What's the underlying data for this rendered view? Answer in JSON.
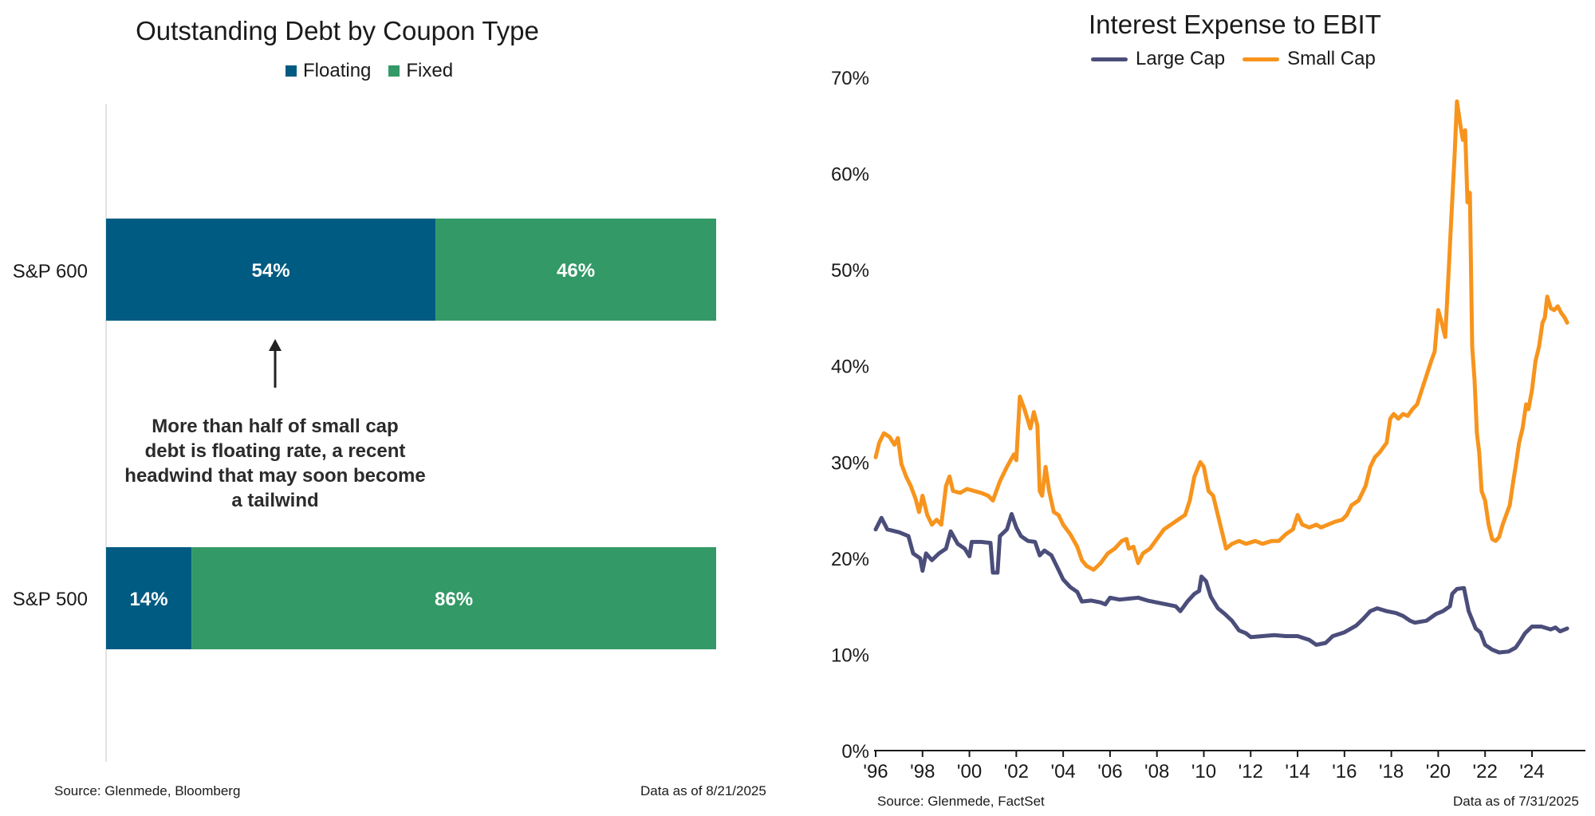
{
  "chart_data": [
    {
      "type": "bar",
      "stacked": true,
      "orientation": "horizontal",
      "title": "Outstanding Debt by Coupon Type",
      "categories": [
        "S&P 600",
        "S&P 500"
      ],
      "series": [
        {
          "name": "Floating",
          "values": [
            54,
            14
          ],
          "labels": [
            "54%",
            "14%"
          ],
          "color": "#005b82"
        },
        {
          "name": "Fixed",
          "values": [
            46,
            86
          ],
          "labels": [
            "46%",
            "86%"
          ],
          "color": "#339966"
        }
      ],
      "legend_placement": "top-center",
      "annotation": "More than half of small cap debt is floating rate, a recent headwind that may soon become a tailwind",
      "source": "Source: Glenmede, Bloomberg",
      "as_of": "Data as of 8/21/2025"
    },
    {
      "type": "line",
      "title": "Interest Expense to EBIT",
      "y_ticks": [
        "0%",
        "10%",
        "20%",
        "30%",
        "40%",
        "50%",
        "60%",
        "70%"
      ],
      "ylim": [
        0,
        70
      ],
      "x_ticks": [
        "'96",
        "'98",
        "'00",
        "'02",
        "'04",
        "'06",
        "'08",
        "'10",
        "'12",
        "'14",
        "'16",
        "'18",
        "'20",
        "'22",
        "'24"
      ],
      "xlim": [
        1996.0,
        2025.6
      ],
      "legend_placement": "top-center",
      "series": [
        {
          "name": "Large Cap",
          "color": "#4b4d7a",
          "points": [
            [
              1996.0,
              23.0
            ],
            [
              1996.25,
              24.2
            ],
            [
              1996.5,
              23.0
            ],
            [
              1997.0,
              22.7
            ],
            [
              1997.4,
              22.3
            ],
            [
              1997.6,
              20.5
            ],
            [
              1997.9,
              20.0
            ],
            [
              1998.0,
              18.7
            ],
            [
              1998.15,
              20.5
            ],
            [
              1998.4,
              19.8
            ],
            [
              1998.7,
              20.5
            ],
            [
              1999.0,
              21.0
            ],
            [
              1999.2,
              22.8
            ],
            [
              1999.5,
              21.5
            ],
            [
              1999.8,
              21.0
            ],
            [
              2000.0,
              20.2
            ],
            [
              2000.1,
              21.7
            ],
            [
              2000.5,
              21.7
            ],
            [
              2000.9,
              21.6
            ],
            [
              2001.0,
              18.5
            ],
            [
              2001.2,
              18.5
            ],
            [
              2001.3,
              22.3
            ],
            [
              2001.6,
              23.0
            ],
            [
              2001.8,
              24.6
            ],
            [
              2002.0,
              23.2
            ],
            [
              2002.2,
              22.3
            ],
            [
              2002.5,
              21.8
            ],
            [
              2002.8,
              21.7
            ],
            [
              2003.0,
              20.3
            ],
            [
              2003.2,
              20.8
            ],
            [
              2003.5,
              20.3
            ],
            [
              2003.8,
              18.8
            ],
            [
              2004.0,
              17.8
            ],
            [
              2004.3,
              17.0
            ],
            [
              2004.6,
              16.5
            ],
            [
              2004.8,
              15.5
            ],
            [
              2005.2,
              15.6
            ],
            [
              2005.6,
              15.4
            ],
            [
              2005.8,
              15.2
            ],
            [
              2006.0,
              15.9
            ],
            [
              2006.4,
              15.7
            ],
            [
              2006.8,
              15.8
            ],
            [
              2007.2,
              15.9
            ],
            [
              2007.6,
              15.6
            ],
            [
              2008.0,
              15.4
            ],
            [
              2008.4,
              15.2
            ],
            [
              2008.8,
              15.0
            ],
            [
              2009.0,
              14.5
            ],
            [
              2009.3,
              15.5
            ],
            [
              2009.6,
              16.3
            ],
            [
              2009.8,
              16.6
            ],
            [
              2009.9,
              18.1
            ],
            [
              2010.1,
              17.6
            ],
            [
              2010.3,
              16.0
            ],
            [
              2010.6,
              14.8
            ],
            [
              2010.9,
              14.2
            ],
            [
              2011.2,
              13.5
            ],
            [
              2011.5,
              12.5
            ],
            [
              2011.8,
              12.2
            ],
            [
              2012.0,
              11.8
            ],
            [
              2012.5,
              11.9
            ],
            [
              2013.0,
              12.0
            ],
            [
              2013.5,
              11.9
            ],
            [
              2014.0,
              11.9
            ],
            [
              2014.5,
              11.5
            ],
            [
              2014.8,
              11.0
            ],
            [
              2015.2,
              11.2
            ],
            [
              2015.5,
              11.9
            ],
            [
              2016.0,
              12.3
            ],
            [
              2016.5,
              13.0
            ],
            [
              2016.8,
              13.7
            ],
            [
              2017.1,
              14.5
            ],
            [
              2017.4,
              14.8
            ],
            [
              2017.8,
              14.5
            ],
            [
              2018.2,
              14.3
            ],
            [
              2018.5,
              14.0
            ],
            [
              2018.8,
              13.5
            ],
            [
              2019.0,
              13.3
            ],
            [
              2019.5,
              13.5
            ],
            [
              2019.9,
              14.2
            ],
            [
              2020.2,
              14.5
            ],
            [
              2020.5,
              15.0
            ],
            [
              2020.6,
              16.3
            ],
            [
              2020.8,
              16.8
            ],
            [
              2021.1,
              16.9
            ],
            [
              2021.3,
              14.5
            ],
            [
              2021.6,
              12.7
            ],
            [
              2021.8,
              12.3
            ],
            [
              2022.0,
              11.0
            ],
            [
              2022.3,
              10.5
            ],
            [
              2022.6,
              10.2
            ],
            [
              2023.0,
              10.3
            ],
            [
              2023.3,
              10.7
            ],
            [
              2023.5,
              11.4
            ],
            [
              2023.7,
              12.2
            ],
            [
              2024.0,
              12.9
            ],
            [
              2024.4,
              12.9
            ],
            [
              2024.8,
              12.6
            ],
            [
              2025.0,
              12.8
            ],
            [
              2025.2,
              12.4
            ],
            [
              2025.5,
              12.7
            ]
          ]
        },
        {
          "name": "Small Cap",
          "color": "#f7941d",
          "points": [
            [
              1996.0,
              30.5
            ],
            [
              1996.15,
              32.0
            ],
            [
              1996.35,
              33.0
            ],
            [
              1996.6,
              32.6
            ],
            [
              1996.8,
              31.8
            ],
            [
              1996.95,
              32.5
            ],
            [
              1997.1,
              29.8
            ],
            [
              1997.3,
              28.5
            ],
            [
              1997.5,
              27.5
            ],
            [
              1997.7,
              26.2
            ],
            [
              1997.85,
              24.8
            ],
            [
              1998.0,
              26.5
            ],
            [
              1998.2,
              24.5
            ],
            [
              1998.4,
              23.5
            ],
            [
              1998.6,
              24.0
            ],
            [
              1998.8,
              23.5
            ],
            [
              1999.0,
              27.5
            ],
            [
              1999.15,
              28.5
            ],
            [
              1999.3,
              27.0
            ],
            [
              1999.6,
              26.8
            ],
            [
              1999.9,
              27.2
            ],
            [
              2000.2,
              27.0
            ],
            [
              2000.5,
              26.8
            ],
            [
              2000.8,
              26.5
            ],
            [
              2001.0,
              26.0
            ],
            [
              2001.3,
              28.0
            ],
            [
              2001.6,
              29.5
            ],
            [
              2001.9,
              30.8
            ],
            [
              2002.0,
              30.2
            ],
            [
              2002.15,
              36.8
            ],
            [
              2002.35,
              35.5
            ],
            [
              2002.6,
              33.5
            ],
            [
              2002.75,
              35.2
            ],
            [
              2002.9,
              33.8
            ],
            [
              2003.0,
              27.0
            ],
            [
              2003.1,
              26.5
            ],
            [
              2003.25,
              29.5
            ],
            [
              2003.4,
              27.0
            ],
            [
              2003.6,
              24.8
            ],
            [
              2003.8,
              24.5
            ],
            [
              2004.0,
              23.5
            ],
            [
              2004.3,
              22.5
            ],
            [
              2004.6,
              21.2
            ],
            [
              2004.8,
              19.8
            ],
            [
              2005.0,
              19.2
            ],
            [
              2005.3,
              18.8
            ],
            [
              2005.6,
              19.5
            ],
            [
              2005.9,
              20.5
            ],
            [
              2006.2,
              21.0
            ],
            [
              2006.5,
              21.8
            ],
            [
              2006.7,
              22.0
            ],
            [
              2006.8,
              21.0
            ],
            [
              2007.0,
              21.2
            ],
            [
              2007.2,
              19.5
            ],
            [
              2007.4,
              20.5
            ],
            [
              2007.7,
              21.0
            ],
            [
              2008.0,
              22.0
            ],
            [
              2008.3,
              23.0
            ],
            [
              2008.6,
              23.5
            ],
            [
              2008.9,
              24.0
            ],
            [
              2009.2,
              24.5
            ],
            [
              2009.4,
              26.0
            ],
            [
              2009.6,
              28.5
            ],
            [
              2009.85,
              30.0
            ],
            [
              2010.0,
              29.5
            ],
            [
              2010.2,
              27.0
            ],
            [
              2010.4,
              26.5
            ],
            [
              2010.6,
              24.5
            ],
            [
              2010.8,
              22.5
            ],
            [
              2010.95,
              21.0
            ],
            [
              2011.2,
              21.5
            ],
            [
              2011.5,
              21.8
            ],
            [
              2011.8,
              21.5
            ],
            [
              2012.2,
              21.8
            ],
            [
              2012.5,
              21.5
            ],
            [
              2012.9,
              21.8
            ],
            [
              2013.2,
              21.8
            ],
            [
              2013.5,
              22.5
            ],
            [
              2013.8,
              23.0
            ],
            [
              2014.0,
              24.5
            ],
            [
              2014.2,
              23.5
            ],
            [
              2014.5,
              23.2
            ],
            [
              2014.8,
              23.5
            ],
            [
              2015.0,
              23.2
            ],
            [
              2015.3,
              23.5
            ],
            [
              2015.6,
              23.8
            ],
            [
              2015.9,
              24.0
            ],
            [
              2016.1,
              24.5
            ],
            [
              2016.3,
              25.5
            ],
            [
              2016.6,
              26.0
            ],
            [
              2016.9,
              27.5
            ],
            [
              2017.1,
              29.5
            ],
            [
              2017.3,
              30.5
            ],
            [
              2017.5,
              31.0
            ],
            [
              2017.8,
              32.0
            ],
            [
              2017.95,
              34.5
            ],
            [
              2018.1,
              35.0
            ],
            [
              2018.3,
              34.5
            ],
            [
              2018.5,
              35.0
            ],
            [
              2018.7,
              34.8
            ],
            [
              2018.9,
              35.5
            ],
            [
              2019.1,
              36.0
            ],
            [
              2019.3,
              37.5
            ],
            [
              2019.5,
              39.0
            ],
            [
              2019.7,
              40.5
            ],
            [
              2019.85,
              41.5
            ],
            [
              2020.0,
              45.8
            ],
            [
              2020.15,
              44.5
            ],
            [
              2020.3,
              43.0
            ],
            [
              2020.45,
              50.0
            ],
            [
              2020.55,
              55.0
            ],
            [
              2020.7,
              62.0
            ],
            [
              2020.8,
              67.5
            ],
            [
              2020.95,
              65.0
            ],
            [
              2021.05,
              63.5
            ],
            [
              2021.15,
              64.5
            ],
            [
              2021.25,
              57.0
            ],
            [
              2021.35,
              58.0
            ],
            [
              2021.45,
              42.0
            ],
            [
              2021.55,
              38.5
            ],
            [
              2021.65,
              33.0
            ],
            [
              2021.75,
              31.0
            ],
            [
              2021.85,
              27.0
            ],
            [
              2022.0,
              26.0
            ],
            [
              2022.15,
              23.5
            ],
            [
              2022.3,
              22.0
            ],
            [
              2022.45,
              21.8
            ],
            [
              2022.6,
              22.2
            ],
            [
              2022.75,
              23.5
            ],
            [
              2022.9,
              24.5
            ],
            [
              2023.05,
              25.5
            ],
            [
              2023.2,
              28.0
            ],
            [
              2023.3,
              29.5
            ],
            [
              2023.45,
              32.0
            ],
            [
              2023.6,
              33.5
            ],
            [
              2023.75,
              36.0
            ],
            [
              2023.85,
              35.5
            ],
            [
              2024.0,
              37.5
            ],
            [
              2024.15,
              40.5
            ],
            [
              2024.3,
              42.0
            ],
            [
              2024.45,
              44.5
            ],
            [
              2024.55,
              45.0
            ],
            [
              2024.65,
              47.2
            ],
            [
              2024.8,
              46.0
            ],
            [
              2024.95,
              45.8
            ],
            [
              2025.1,
              46.2
            ],
            [
              2025.25,
              45.5
            ],
            [
              2025.4,
              45.0
            ],
            [
              2025.5,
              44.5
            ]
          ]
        }
      ],
      "source": "Source: Glenmede, FactSet",
      "as_of": "Data as of 7/31/2025"
    }
  ]
}
